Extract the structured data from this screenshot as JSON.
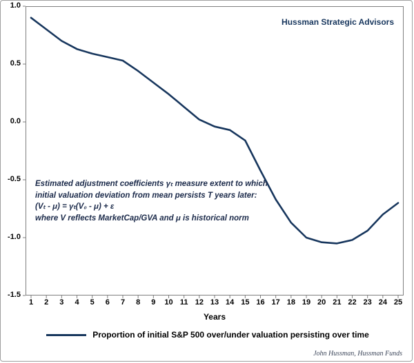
{
  "brand": "Hussman Strategic Advisors",
  "attribution": "John Hussman, Hussman Funds",
  "legend": {
    "label": "Proportion of initial S&P 500 over/under valuation persisting over time"
  },
  "annotation": {
    "line1": "Estimated adjustment coefficients γₜ measure extent to which",
    "line2": "initial valuation deviation from mean persists T years later:",
    "line3": "(Vₜ - μ) = γₜ(V₀ - μ) + ε",
    "line4": "where V reflects MarketCap/GVA and μ is historical norm"
  },
  "chart_data": {
    "type": "line",
    "title": "",
    "xlabel": "Years",
    "ylabel": "",
    "x": [
      1,
      2,
      3,
      4,
      5,
      6,
      7,
      8,
      9,
      10,
      11,
      12,
      13,
      14,
      15,
      16,
      17,
      18,
      19,
      20,
      21,
      22,
      23,
      24,
      25
    ],
    "values": [
      0.9,
      0.8,
      0.7,
      0.63,
      0.59,
      0.56,
      0.53,
      0.44,
      0.34,
      0.24,
      0.13,
      0.02,
      -0.04,
      -0.07,
      -0.16,
      -0.42,
      -0.67,
      -0.87,
      -1.0,
      -1.04,
      -1.05,
      -1.02,
      -0.94,
      -0.8,
      -0.7
    ],
    "ylim": [
      -1.5,
      1.0
    ],
    "yticks": [
      1.0,
      0.5,
      0.0,
      -0.5,
      -1.0,
      -1.5
    ],
    "ytick_labels": [
      "1.0",
      "0.5",
      "0.0",
      "-0.5",
      "-1.0",
      "-1.5"
    ],
    "xtick_labels": [
      "1",
      "2",
      "3",
      "4",
      "5",
      "6",
      "7",
      "8",
      "9",
      "10",
      "11",
      "12",
      "13",
      "14",
      "15",
      "16",
      "17",
      "18",
      "19",
      "20",
      "21",
      "22",
      "23",
      "24",
      "25"
    ],
    "line_color": "#17365d",
    "grid": false,
    "legend_position": "bottom",
    "series_name": "Proportion of initial S&P 500 over/under valuation persisting over time"
  },
  "colors": {
    "navy": "#17365d",
    "plot_border": "#7f7f7f",
    "frame_border": "#9e9e9e"
  }
}
